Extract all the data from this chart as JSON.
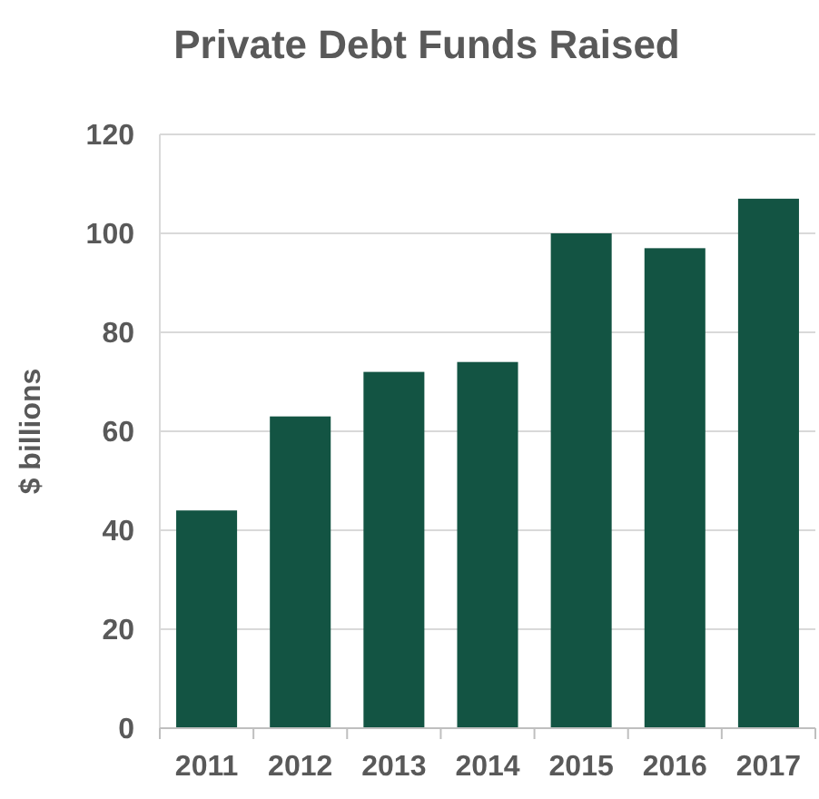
{
  "chart_data": {
    "type": "bar",
    "title": "Private Debt Funds Raised",
    "ylabel": "$ billions",
    "categories": [
      "2011",
      "2012",
      "2013",
      "2014",
      "2015",
      "2016",
      "2017"
    ],
    "values": [
      44,
      63,
      72,
      74,
      100,
      97,
      107
    ],
    "color": "#135443",
    "ylim": [
      0,
      120
    ],
    "yticks": [
      0,
      20,
      40,
      60,
      80,
      100,
      120
    ],
    "grid": "y"
  }
}
